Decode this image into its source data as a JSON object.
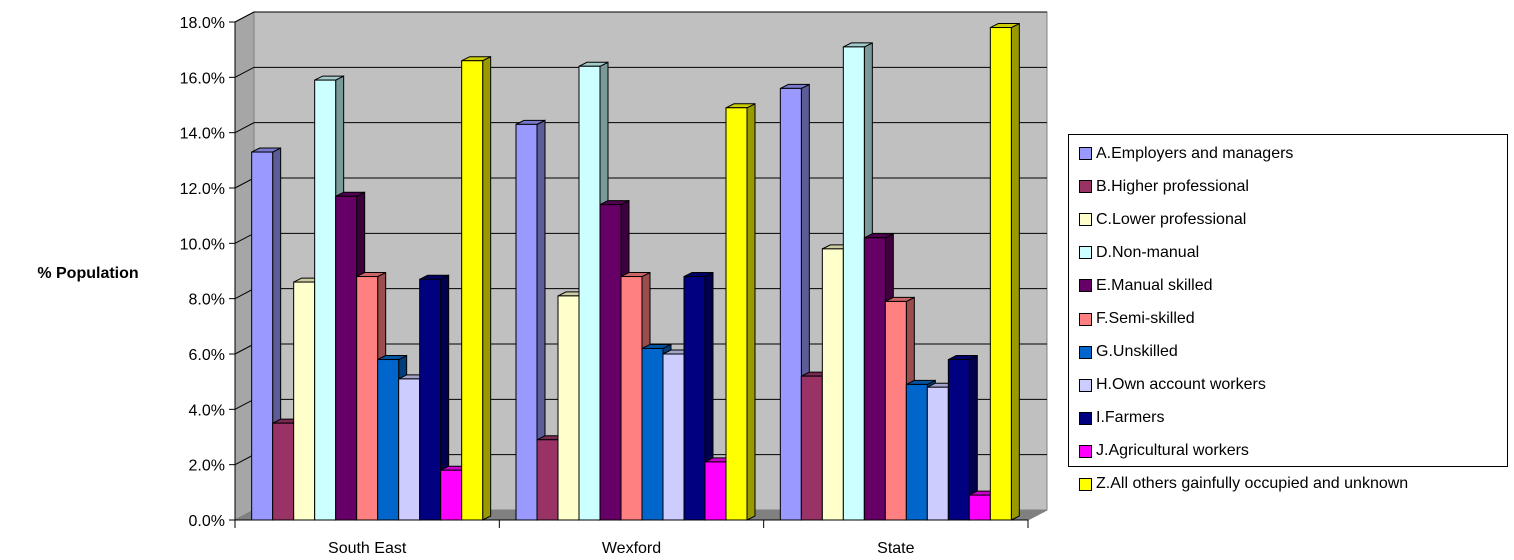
{
  "chart_data": {
    "type": "bar",
    "ylabel": "% Population",
    "xlabel": "",
    "title": "",
    "ylim": [
      0,
      18
    ],
    "y_ticks": [
      "0.0%",
      "2.0%",
      "4.0%",
      "6.0%",
      "8.0%",
      "10.0%",
      "12.0%",
      "14.0%",
      "16.0%",
      "18.0%"
    ],
    "categories": [
      "South East",
      "Wexford",
      "State"
    ],
    "legend_position": "right",
    "grid": true,
    "style": "3d-clustered-column",
    "series": [
      {
        "name": "A.Employers and managers",
        "color": "#9999ff",
        "values": [
          13.3,
          14.3,
          15.6
        ]
      },
      {
        "name": "B.Higher professional",
        "color": "#993366",
        "values": [
          3.5,
          2.9,
          5.2
        ]
      },
      {
        "name": "C.Lower professional",
        "color": "#ffffcc",
        "values": [
          8.6,
          8.1,
          9.8
        ]
      },
      {
        "name": "D.Non-manual",
        "color": "#ccffff",
        "values": [
          15.9,
          16.4,
          17.1
        ]
      },
      {
        "name": "E.Manual skilled",
        "color": "#660066",
        "values": [
          11.7,
          11.4,
          10.2
        ]
      },
      {
        "name": "F.Semi-skilled",
        "color": "#ff8080",
        "values": [
          8.8,
          8.8,
          7.9
        ]
      },
      {
        "name": "G.Unskilled",
        "color": "#0066cc",
        "values": [
          5.8,
          6.2,
          4.9
        ]
      },
      {
        "name": "H.Own account workers",
        "color": "#ccccff",
        "values": [
          5.1,
          6.0,
          4.8
        ]
      },
      {
        "name": "I.Farmers",
        "color": "#000080",
        "values": [
          8.7,
          8.8,
          5.8
        ]
      },
      {
        "name": "J.Agricultural workers",
        "color": "#ff00ff",
        "values": [
          1.8,
          2.1,
          0.9
        ]
      },
      {
        "name": "Z.All others gainfully occupied and unknown",
        "color": "#ffff00",
        "values": [
          16.6,
          14.9,
          17.8
        ]
      }
    ]
  }
}
